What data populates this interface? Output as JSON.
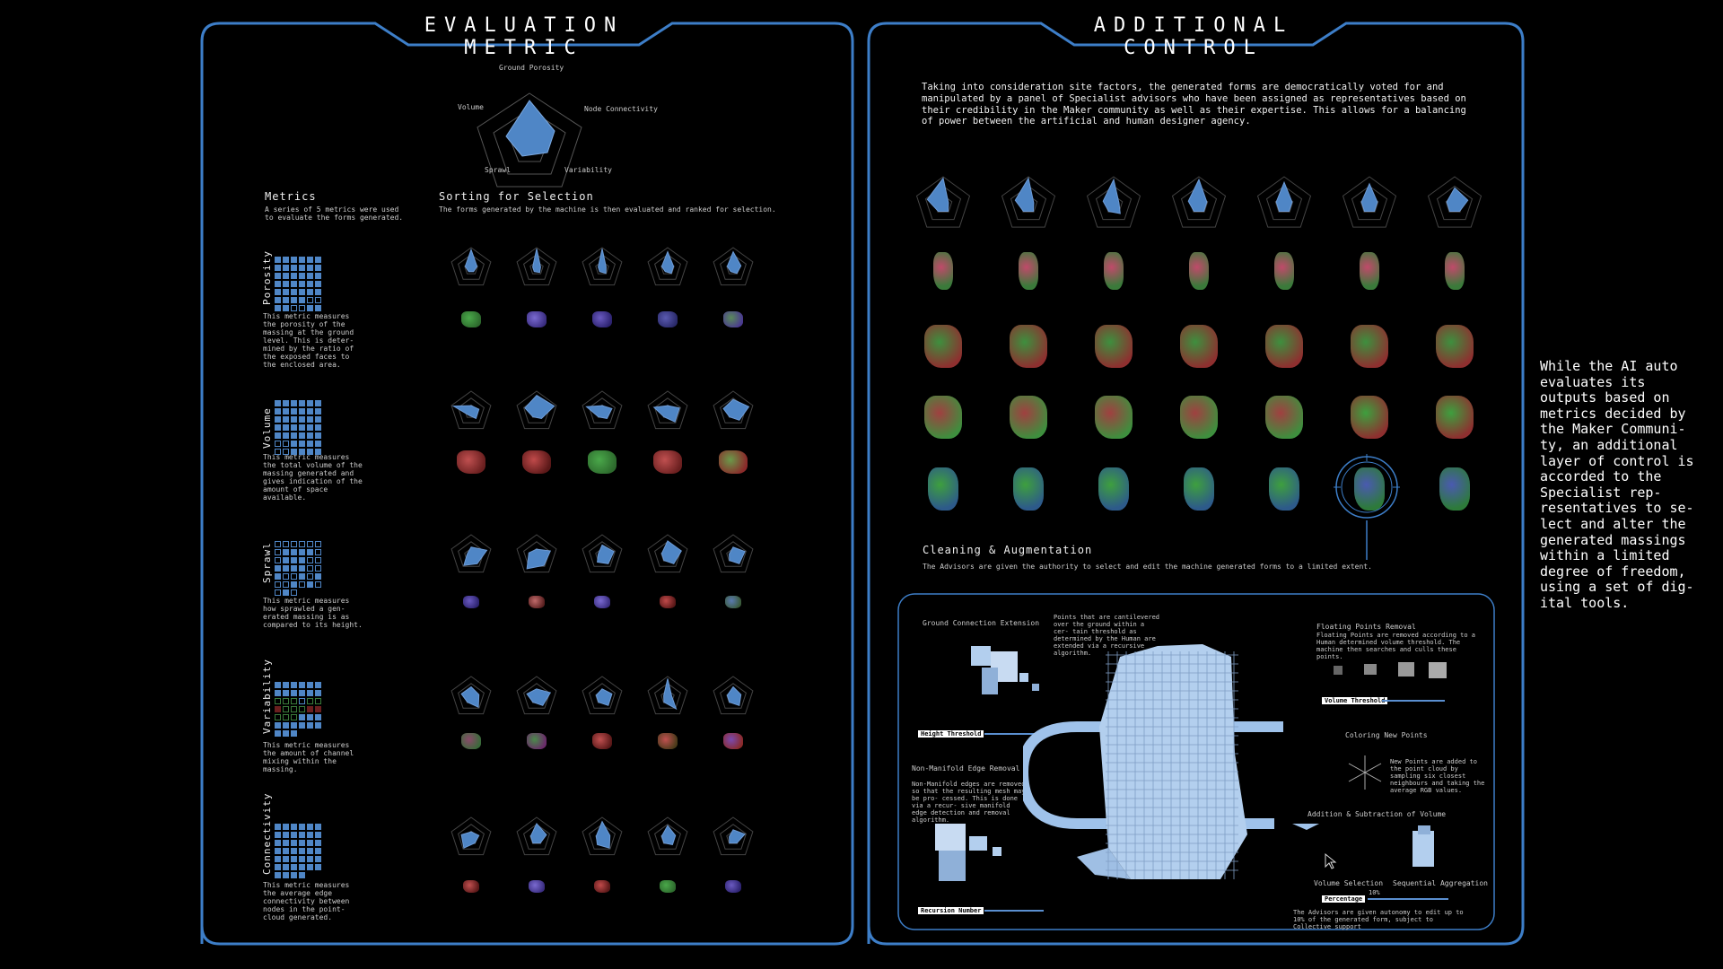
{
  "left_panel": {
    "title": "EVALUATION METRIC",
    "radar_labels": [
      "Ground Porosity",
      "Node Connectivity",
      "Variability",
      "Sprawl",
      "Volume"
    ],
    "metrics_heading": "Metrics",
    "metrics_desc": "A series of 5 metrics were used to evaluate the forms generated.",
    "sorting_heading": "Sorting for Selection",
    "sorting_desc": "The forms generated by the machine is then evaluated and ranked for selection.",
    "metrics": [
      {
        "name": "Porosity",
        "desc": "This metric measures the porosity of the massing at the ground level. This is deter- mined by the ratio of the exposed faces to the enclosed area."
      },
      {
        "name": "Volume",
        "desc": "This metric measures the total volume of the massing generated and gives indication of the amount of space available."
      },
      {
        "name": "Sprawl",
        "desc": "This metric measures how sprawled a gen- erated massing is as compared to its height."
      },
      {
        "name": "Variability",
        "desc": "This metric measures the amount of channel mixing within the massing."
      },
      {
        "name": "Connectivity",
        "desc": "This metric measures the average edge connectivity between nodes in the point- cloud generated."
      }
    ]
  },
  "right_panel": {
    "title": "ADDITIONAL CONTROL",
    "intro": "Taking into consideration site factors, the generated forms are democratically voted for and manipulated by a panel of Specialist advisors who have been assigned as representatives based on their credibility in the Maker community as well as their expertise. This allows for a balancing of power between the artificial and human designer agency.",
    "cleaning_heading": "Cleaning & Augmentation",
    "cleaning_desc": "The Advisors are given the authority to select and edit the machine generated forms to a limited extent.",
    "tools": {
      "ground_extension": "Ground Connection Extension",
      "ground_extension_desc": "Points that are cantilevered over the ground within a cer- tain threshold as determined by the Human are extended via a recursive algorithm.",
      "height_threshold": "Height Threshold",
      "non_manifold": "Non-Manifold Edge Removal",
      "non_manifold_desc": "Non-Manifold edges are removed so that the resulting mesh may be pro- cessed. This is done via a recur- sive manifold edge detection and removal algorithm.",
      "recursion_number": "Recursion Number",
      "floating": "Floating Points Removal",
      "floating_desc": "Floating Points are removed according to a Human determined volume threshold. The machine then searches and culls these points.",
      "volume_threshold": "Volume Threshold",
      "coloring": "Coloring New Points",
      "coloring_desc": "New Points are added to the point cloud by sampling six closest neighbours and taking the average RGB values.",
      "addition": "Addition & Subtraction of Volume",
      "volume_selection": "Volume Selection",
      "sequential": "Sequential Aggregation",
      "percentage": "Percentage",
      "percentage_value": "10%",
      "advisors_note": "The Advisors are given autonomy to edit up to 10% of the generated form, subject to Collective support"
    }
  },
  "side_note": "While the AI auto evaluates its outputs based on metrics decided by the Maker Communi- ty, an additional layer of control is accorded to the Specialist rep- resentatives to se- lect and alter the generated massings within a limited degree of freedom, using a set of dig- ital tools.",
  "colors": {
    "frame": "#3d7ec8",
    "radar_fill": "#4f86c6",
    "green": "#3e8f3e",
    "red": "#8e2f2f",
    "purple": "#5a4aa0"
  }
}
